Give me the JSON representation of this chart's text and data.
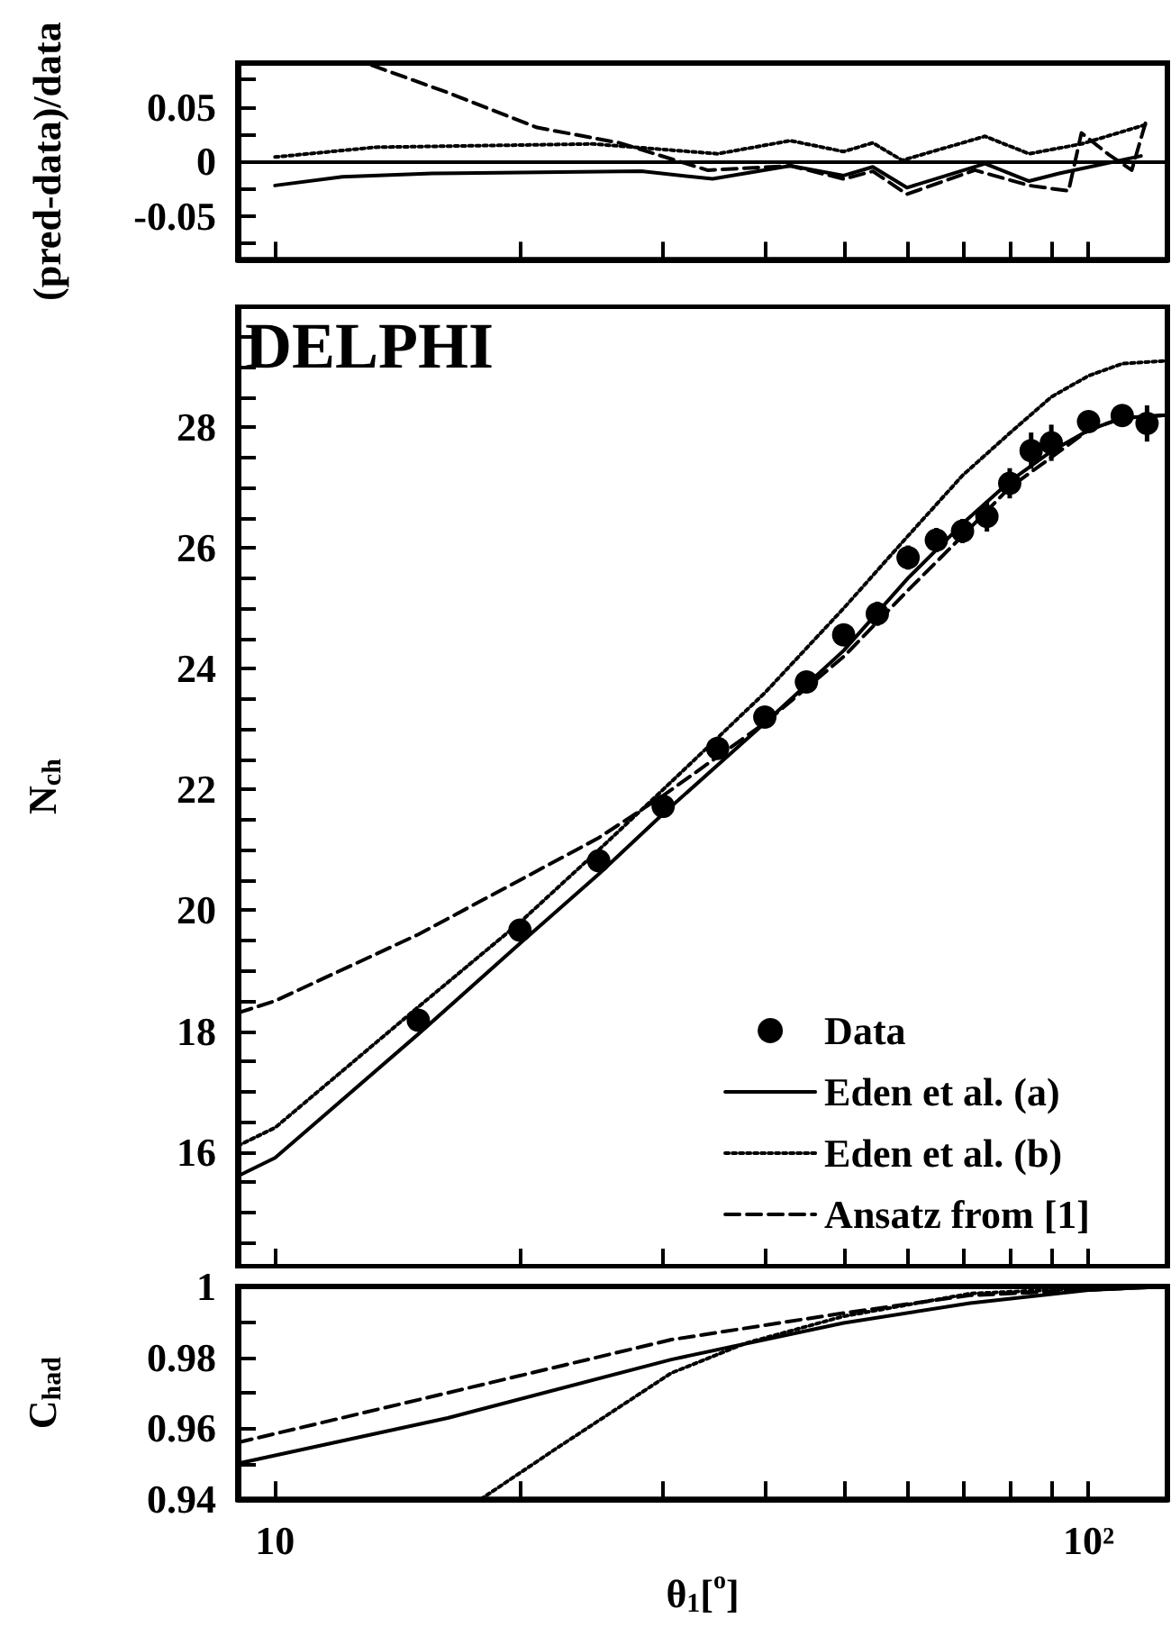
{
  "chart_data": [
    {
      "type": "line",
      "ylabel": "(pred-data)/data",
      "log": "x",
      "tick_labels": "y",
      "xlim": [
        9,
        125
      ],
      "ylim": [
        -0.09,
        0.09
      ],
      "xticks": [
        {
          "value": 10,
          "label": null
        },
        {
          "value": 20,
          "label": null
        },
        {
          "value": 30,
          "label": null
        },
        {
          "value": 40,
          "label": null
        },
        {
          "value": 50,
          "label": null
        },
        {
          "value": 60,
          "label": null
        },
        {
          "value": 70,
          "label": null
        },
        {
          "value": 80,
          "label": null
        },
        {
          "value": 90,
          "label": null
        },
        {
          "value": 100,
          "label": null
        }
      ],
      "yticks": [
        {
          "value": -0.075,
          "label": null
        },
        -0.05,
        {
          "value": -0.025,
          "label": null
        },
        0,
        {
          "value": 0.025,
          "label": null
        },
        0.05,
        {
          "value": 0.075,
          "label": null
        }
      ],
      "ref_lines": [
        {
          "axis": "y",
          "value": 0,
          "color": "#000000",
          "line_style": "solid"
        }
      ],
      "series": [
        {
          "color": "#000000",
          "line_style": "solid",
          "x": [
            10,
            12.1,
            15.6,
            28.2,
            34.5,
            43,
            50,
            54.3,
            59.8,
            74.6,
            84.5,
            92,
            116
          ],
          "values": [
            -0.022,
            -0.014,
            -0.011,
            -0.009,
            -0.016,
            -0.004,
            -0.013,
            -0.005,
            -0.024,
            -0.002,
            -0.018,
            -0.011,
            0.005
          ]
        },
        {
          "color": "#000000",
          "line_style": "dotted",
          "x": [
            10,
            13.3,
            24.6,
            35,
            43,
            50,
            54.3,
            59,
            74.6,
            84.5,
            98,
            118
          ],
          "values": [
            0.004,
            0.013,
            0.016,
            0.007,
            0.019,
            0.009,
            0.017,
            0.001,
            0.023,
            0.007,
            0.016,
            0.034
          ]
        },
        {
          "color": "#000000",
          "line_style": "dashed",
          "x": [
            13.15,
            16.3,
            21,
            26.5,
            34,
            43,
            50,
            54.3,
            59.8,
            72.5,
            84.5,
            94.5,
            98,
            106,
            113,
            118
          ],
          "values": [
            0.088,
            0.063,
            0.031,
            0.017,
            -0.008,
            -0.004,
            -0.016,
            -0.009,
            -0.03,
            -0.008,
            -0.022,
            -0.027,
            0.026,
            0.006,
            -0.008,
            0.04
          ]
        }
      ]
    },
    {
      "type": "line",
      "ylabel": "N$_{ch}$",
      "annotations": [
        "DELPHI"
      ],
      "log": "x",
      "tick_labels": "y",
      "legend": "bottom right",
      "xlim": [
        9,
        125
      ],
      "ylim": [
        14.1,
        30
      ],
      "xticks": [
        {
          "value": 10,
          "label": null
        },
        {
          "value": 20,
          "label": null
        },
        {
          "value": 30,
          "label": null
        },
        {
          "value": 40,
          "label": null
        },
        {
          "value": 50,
          "label": null
        },
        {
          "value": 60,
          "label": null
        },
        {
          "value": 70,
          "label": null
        },
        {
          "value": 80,
          "label": null
        },
        {
          "value": 90,
          "label": null
        },
        {
          "value": 100,
          "label": null
        }
      ],
      "yticks": [
        {
          "value": 14.5,
          "label": null
        },
        {
          "value": 15,
          "label": null
        },
        {
          "value": 15.5,
          "label": null
        },
        16,
        {
          "value": 16.5,
          "label": null
        },
        {
          "value": 17,
          "label": null
        },
        {
          "value": 17.5,
          "label": null
        },
        18,
        {
          "value": 18.5,
          "label": null
        },
        {
          "value": 19,
          "label": null
        },
        {
          "value": 19.5,
          "label": null
        },
        20,
        {
          "value": 20.5,
          "label": null
        },
        {
          "value": 21,
          "label": null
        },
        {
          "value": 21.5,
          "label": null
        },
        22,
        {
          "value": 22.5,
          "label": null
        },
        {
          "value": 23,
          "label": null
        },
        {
          "value": 23.5,
          "label": null
        },
        24,
        {
          "value": 24.5,
          "label": null
        },
        {
          "value": 25,
          "label": null
        },
        {
          "value": 25.5,
          "label": null
        },
        26,
        {
          "value": 26.5,
          "label": null
        },
        {
          "value": 27,
          "label": null
        },
        {
          "value": 27.5,
          "label": null
        },
        28,
        {
          "value": 28.5,
          "label": null
        },
        {
          "value": 29,
          "label": null
        },
        {
          "value": 29.5,
          "label": null
        }
      ],
      "series": [
        {
          "name": "Data",
          "type": "scatter",
          "marker": "circle",
          "color": "#000000",
          "x": [
            15,
            20,
            25,
            30,
            35,
            40,
            45,
            50,
            55,
            60,
            65,
            70,
            75,
            80,
            85,
            90,
            100,
            110,
            118
          ],
          "values": [
            18.18,
            19.67,
            20.82,
            21.72,
            22.68,
            23.2,
            23.78,
            24.56,
            24.91,
            25.84,
            26.13,
            26.28,
            26.52,
            27.07,
            27.61,
            27.74,
            28.09,
            28.19,
            28.06
          ],
          "errors": [
            0.1,
            0.1,
            0.1,
            0.1,
            0.15,
            0.1,
            0.1,
            0.15,
            0.2,
            0.2,
            0.2,
            0.2,
            0.25,
            0.25,
            0.3,
            0.3,
            0.15,
            0.15,
            0.3
          ]
        },
        {
          "name": "Eden et al. (a)",
          "color": "#000000",
          "line_style": "solid",
          "x": [
            9,
            10,
            15,
            20,
            25,
            30,
            40,
            50,
            60,
            70,
            80,
            90,
            100,
            110,
            125
          ],
          "values": [
            15.6,
            15.9,
            17.95,
            19.45,
            20.6,
            21.6,
            23.1,
            24.3,
            25.5,
            26.4,
            27.1,
            27.6,
            27.95,
            28.15,
            28.2
          ]
        },
        {
          "name": "Eden et al. (b)",
          "color": "#000000",
          "line_style": "dotted",
          "x": [
            9,
            10,
            15,
            20,
            25,
            30,
            40,
            50,
            60,
            70,
            80,
            90,
            100,
            110,
            125
          ],
          "values": [
            16.1,
            16.4,
            18.4,
            19.8,
            21,
            22,
            23.6,
            25,
            26.2,
            27.2,
            27.9,
            28.5,
            28.85,
            29.05,
            29.1
          ]
        },
        {
          "name": "Ansatz from [1]",
          "color": "#000000",
          "line_style": "dashed",
          "x": [
            9,
            10,
            15,
            20,
            25,
            30,
            40,
            50,
            60,
            70,
            80,
            90,
            100,
            110,
            125
          ],
          "values": [
            18.3,
            18.5,
            19.6,
            20.5,
            21.2,
            21.9,
            23.1,
            24.2,
            25.3,
            26.2,
            27,
            27.5,
            27.95,
            28.15,
            28.2
          ]
        }
      ]
    },
    {
      "type": "line",
      "ylabel": "C$_{had}$",
      "xlabel": "θ$_{1}$[$^{o}$]",
      "log": "x",
      "xlim": [
        9,
        125
      ],
      "ylim": [
        0.94,
        1
      ],
      "xticks": [
        {
          "value": 10,
          "label": "10"
        },
        {
          "value": 20,
          "label": null
        },
        {
          "value": 30,
          "label": null
        },
        {
          "value": 40,
          "label": null
        },
        {
          "value": 50,
          "label": null
        },
        {
          "value": 60,
          "label": null
        },
        {
          "value": 70,
          "label": null
        },
        {
          "value": 80,
          "label": null
        },
        {
          "value": 90,
          "label": null
        },
        {
          "value": 100,
          "label": "10²"
        }
      ],
      "yticks": [
        0.94,
        {
          "value": 0.95,
          "label": null
        },
        0.96,
        {
          "value": 0.97,
          "label": null
        },
        0.98,
        {
          "value": 0.99,
          "label": null
        },
        1
      ],
      "series": [
        {
          "color": "#000000",
          "line_style": "solid",
          "x": [
            9,
            16.3,
            30.7,
            50,
            71.5,
            100,
            125
          ],
          "values": [
            0.9501,
            0.9629,
            0.9794,
            0.9897,
            0.9953,
            0.999,
            1
          ]
        },
        {
          "color": "#000000",
          "line_style": "dashed",
          "x": [
            9,
            16.3,
            30.7,
            50,
            71.5,
            100,
            125
          ],
          "values": [
            0.956,
            0.97,
            0.985,
            0.9925,
            0.9975,
            0.999,
            1
          ]
        },
        {
          "color": "#000000",
          "line_style": "dotted",
          "x": [
            17.9,
            22.4,
            30.7,
            37.9,
            50,
            71.5,
            100,
            125
          ],
          "values": [
            0.94,
            0.955,
            0.9756,
            0.984,
            0.9916,
            0.998,
            0.9995,
            1
          ]
        }
      ]
    }
  ]
}
